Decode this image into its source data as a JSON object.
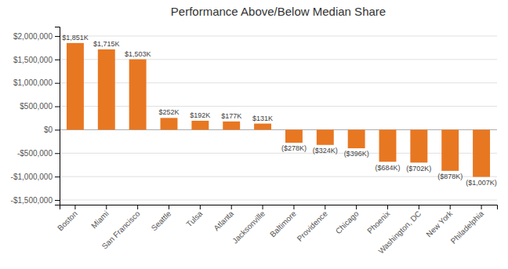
{
  "chart_data": {
    "type": "bar",
    "title": "Performance Above/Below Median Share",
    "categories": [
      "Boston",
      "Miami",
      "San Francisco",
      "Seattle",
      "Tulsa",
      "Atlanta",
      "Jacksonville",
      "Baltimore",
      "Providence",
      "Chicago",
      "Phoenix",
      "Washington, DC",
      "New York",
      "Philadelphia"
    ],
    "values": [
      1851000,
      1715000,
      1503000,
      252000,
      192000,
      177000,
      131000,
      -278000,
      -324000,
      -396000,
      -684000,
      -702000,
      -878000,
      -1007000
    ],
    "value_labels": [
      "$1,851K",
      "$1,715K",
      "$1,503K",
      "$252K",
      "$192K",
      "$177K",
      "$131K",
      "($278K)",
      "($324K)",
      "($396K)",
      "($684K)",
      "($702K)",
      "($878K)",
      "($1,007K)"
    ],
    "color": "#E87722",
    "ylim": [
      -1600000,
      2200000
    ],
    "yticks": [
      {
        "value": -1500000,
        "label": "-$1,500,000"
      },
      {
        "value": -1000000,
        "label": "-$1,000,000"
      },
      {
        "value": -500000,
        "label": "-$500,000"
      },
      {
        "value": 0,
        "label": "$0"
      },
      {
        "value": 500000,
        "label": "$500,000"
      },
      {
        "value": 1000000,
        "label": "$1,000,000"
      },
      {
        "value": 1500000,
        "label": "$1,500,000"
      },
      {
        "value": 2000000,
        "label": "$2,000,000"
      }
    ],
    "grid": true,
    "data_labels": true
  }
}
